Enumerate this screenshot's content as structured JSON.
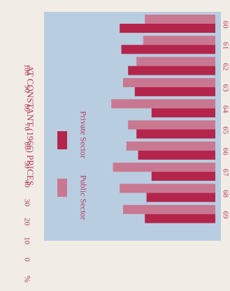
{
  "chart_data": {
    "type": "bar",
    "orientation": "horizontal-bars-rotated-page",
    "title": "AT CONSTANT (1966) PRICES",
    "value_axis_unit": "%",
    "categories": [
      "60",
      "61",
      "62",
      "63",
      "64",
      "65",
      "66",
      "67",
      "68",
      "69"
    ],
    "series": [
      {
        "name": "Public Sector",
        "values": [
          42,
          43,
          47,
          55,
          62,
          52,
          53,
          61,
          57,
          55
        ]
      },
      {
        "name": "Private Sector",
        "values": [
          57,
          56,
          52,
          48,
          38,
          47,
          46,
          38,
          41,
          42
        ]
      }
    ],
    "ylim": [
      0,
      100
    ],
    "y_ticks": [
      "0",
      "10",
      "20",
      "30",
      "40",
      "50",
      "60",
      "70",
      "80",
      "90",
      "100"
    ],
    "grid": false,
    "legend_placement": "inside-upper-left",
    "colors": {
      "plot_background": "#b9cde0",
      "page_background": "#f1ece6",
      "public_sector": "#c97891",
      "private_sector": "#b4254c",
      "text": "#b23a5c"
    }
  }
}
